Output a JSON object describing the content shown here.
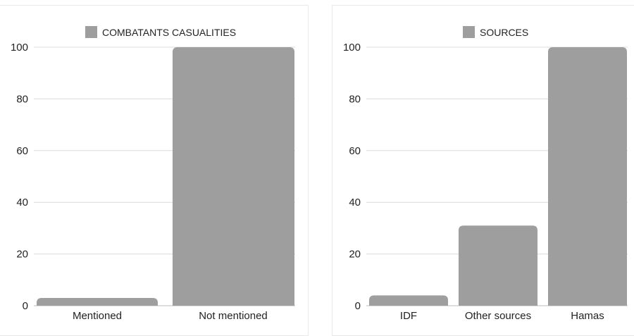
{
  "chart_data": [
    {
      "type": "bar",
      "legend": "COMBATANTS CASUALITIES",
      "legend_position": "top-center",
      "categories": [
        "Mentioned",
        "Not mentioned"
      ],
      "values": [
        3,
        100
      ],
      "ylim": [
        0,
        100
      ],
      "yticks": [
        "0",
        "20",
        "40",
        "60",
        "80",
        "100"
      ],
      "grid": true,
      "color": "#9e9e9e"
    },
    {
      "type": "bar",
      "legend": "SOURCES",
      "legend_position": "top-center",
      "categories": [
        "IDF",
        "Other sources",
        "Hamas"
      ],
      "values": [
        4,
        31,
        100
      ],
      "ylim": [
        0,
        100
      ],
      "yticks": [
        "0",
        "20",
        "40",
        "60",
        "80",
        "100"
      ],
      "grid": true,
      "color": "#9e9e9e"
    }
  ]
}
